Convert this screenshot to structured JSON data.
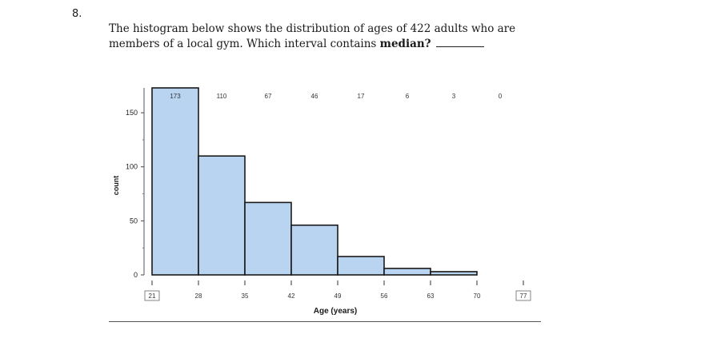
{
  "question": {
    "number": "8.",
    "line1": "The histogram below shows the distribution of ages of 422 adults who are",
    "line2_pre": "members of a local gym. Which interval contains",
    "line2_bold": "median?"
  },
  "chart_data": {
    "type": "bar",
    "bin_edges": [
      21,
      28,
      35,
      42,
      49,
      56,
      63,
      70,
      77
    ],
    "values": [
      173,
      110,
      67,
      46,
      17,
      6,
      3,
      0
    ],
    "value_labels": [
      "173",
      "110",
      "67",
      "46",
      "17",
      "6",
      "3",
      "0"
    ],
    "x_tick_labels": [
      "21",
      "28",
      "35",
      "42",
      "49",
      "56",
      "63",
      "70",
      "77"
    ],
    "y_tick_labels": [
      "0",
      "50",
      "100",
      "150"
    ],
    "y_ticks": [
      0,
      50,
      100,
      150
    ],
    "ylim": [
      0,
      173
    ],
    "xlim": [
      21,
      77
    ],
    "xlabel": "Age (years)",
    "ylabel": "count",
    "bar_color": "#b8d4f0",
    "bar_edge_color": "#1a1a1a"
  }
}
